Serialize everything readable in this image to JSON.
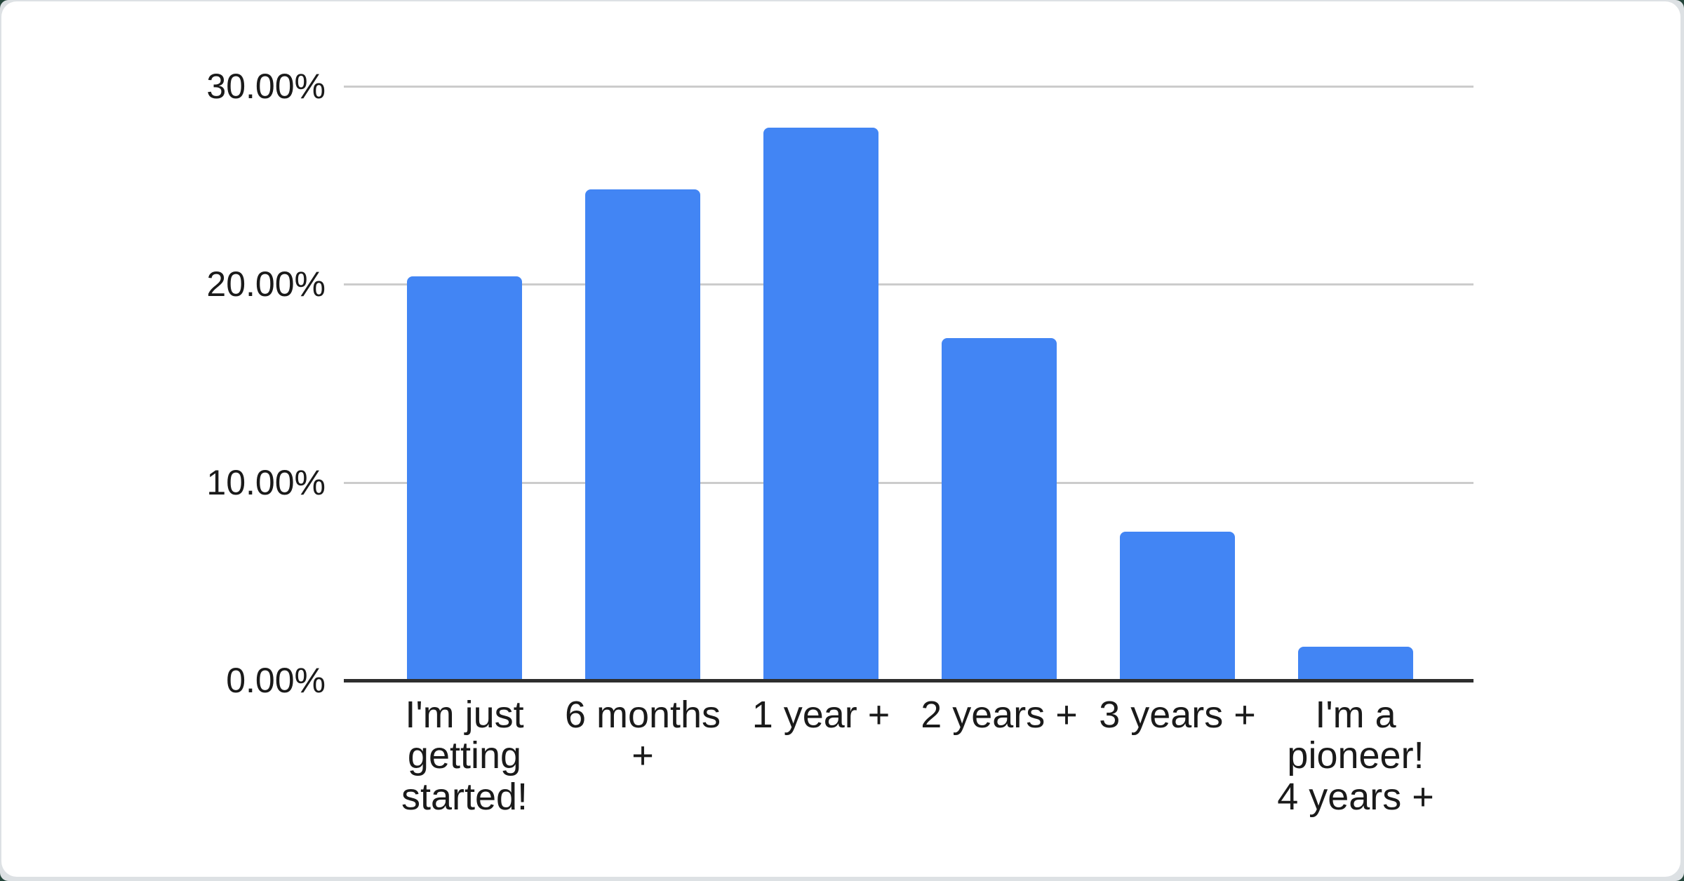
{
  "chart_data": {
    "type": "bar",
    "title": "",
    "xlabel": "",
    "ylabel": "",
    "categories": [
      "I'm just\ngetting\nstarted!",
      "6 months\n+",
      "1 year +",
      "2 years +",
      "3 years +",
      "I'm a\npioneer!\n4 years +"
    ],
    "values": [
      20.4,
      24.8,
      27.9,
      17.3,
      7.5,
      1.7
    ],
    "value_unit": "%",
    "ylim": [
      0,
      30
    ],
    "yticks": [
      0,
      10,
      20,
      30
    ],
    "ytick_labels": [
      "0.00%",
      "10.00%",
      "20.00%",
      "30.00%"
    ],
    "grid": true,
    "legend": "none",
    "colors": {
      "bar": "#4285f4",
      "gridline": "#cccccc",
      "axis_line": "#2e2e2e",
      "label_text": "#1a1a1a",
      "card_background": "#ffffff",
      "page_edge": "#dde1e4"
    }
  }
}
